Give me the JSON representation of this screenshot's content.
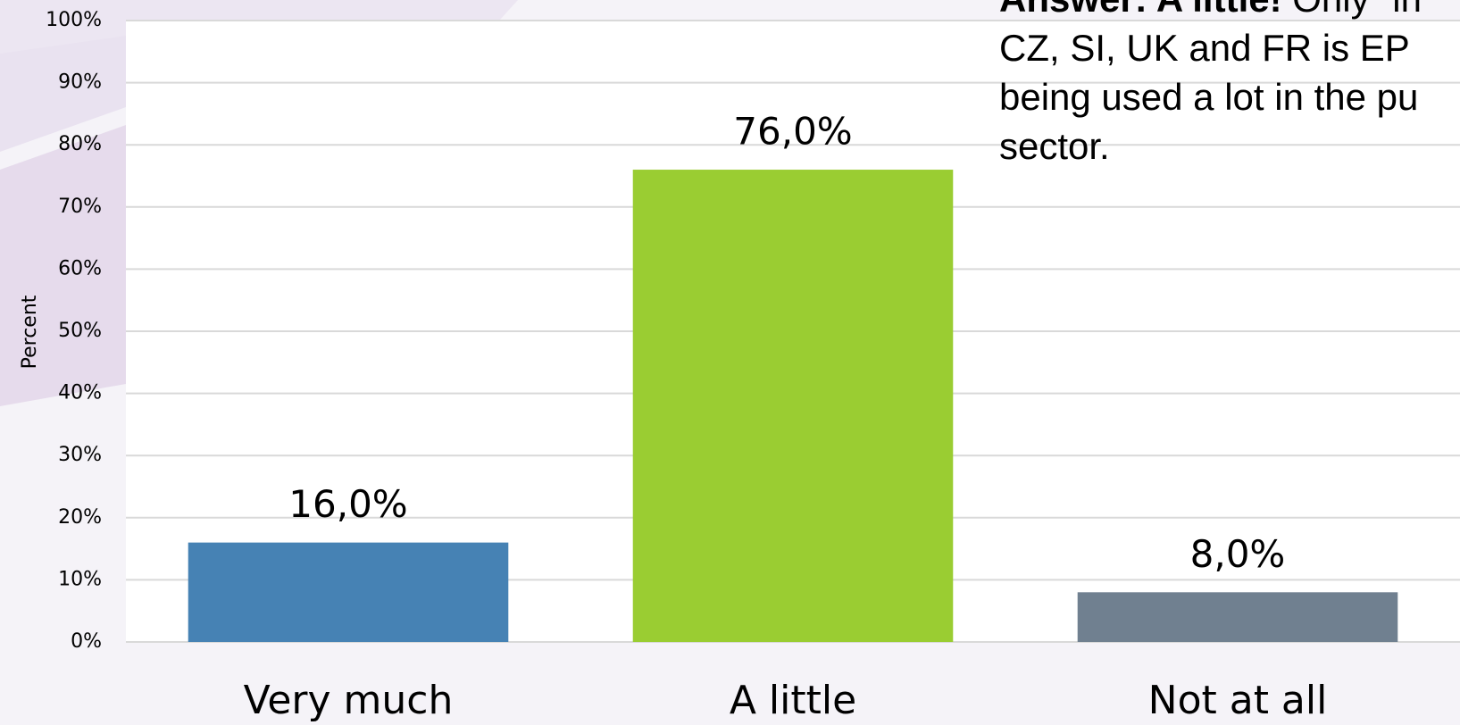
{
  "chart_data": {
    "type": "bar",
    "y_label": "Percent",
    "categories": [
      "Very much",
      "A little",
      "Not at all"
    ],
    "values": [
      16,
      76,
      8
    ],
    "value_labels": [
      "16,0%",
      "76,0%",
      "8,0%"
    ],
    "colors": [
      "#4682b4",
      "#9acd32",
      "#708090"
    ],
    "ylim": [
      0,
      100
    ],
    "yticks": [
      {
        "value": 0,
        "label": "0%"
      },
      {
        "value": 10,
        "label": "10%"
      },
      {
        "value": 20,
        "label": "20%"
      },
      {
        "value": 30,
        "label": "30%"
      },
      {
        "value": 40,
        "label": "40%"
      },
      {
        "value": 50,
        "label": "50%"
      },
      {
        "value": 60,
        "label": "60%"
      },
      {
        "value": 70,
        "label": "70%"
      },
      {
        "value": 80,
        "label": "80%"
      },
      {
        "value": 90,
        "label": "90%"
      },
      {
        "value": 100,
        "label": "100%"
      }
    ],
    "grid": true,
    "annotation": {
      "bold": "Answer: A little!",
      "rest": " Only “in",
      "lines": [
        "CZ, SI, UK and FR is EP",
        "being used a lot in the pu",
        "sector."
      ]
    }
  }
}
